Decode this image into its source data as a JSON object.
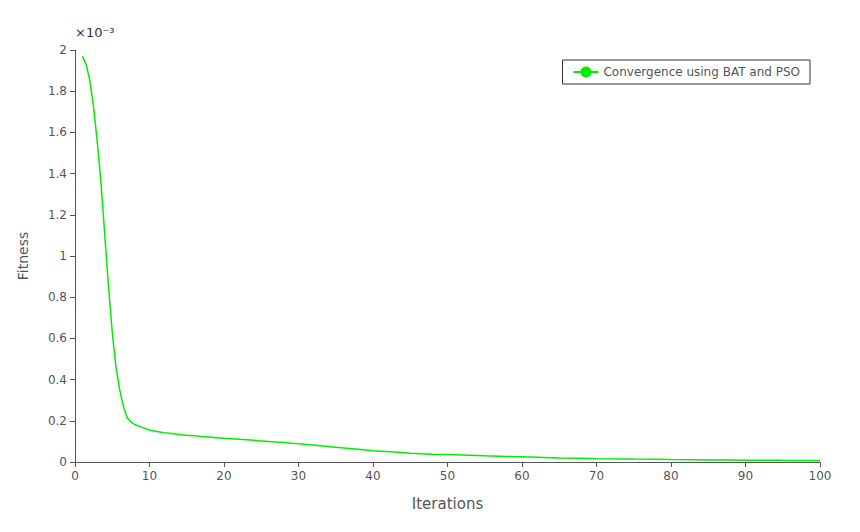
{
  "chart_data": {
    "type": "line",
    "xlabel": "Iterations",
    "ylabel": "Fitness",
    "annotations": [
      "×10⁻³"
    ],
    "x": [
      1,
      1.5,
      2,
      2.5,
      3,
      3.5,
      4,
      4.5,
      5,
      5.5,
      6,
      6.5,
      7,
      7.5,
      8,
      9,
      10,
      11,
      12,
      13,
      14,
      15,
      16,
      17,
      18,
      19,
      20,
      22,
      24,
      26,
      28,
      30,
      32,
      35,
      38,
      40,
      43,
      45,
      48,
      50,
      53,
      55,
      57,
      58,
      60,
      63,
      65,
      68,
      70,
      73,
      75,
      78,
      80,
      83,
      85,
      88,
      90,
      93,
      95,
      98,
      100
    ],
    "series": [
      {
        "name": "Convergence using BAT and PSO",
        "color": "#00ee00",
        "values": [
          0.00197,
          0.00193,
          0.00185,
          0.00172,
          0.00155,
          0.00135,
          0.0011,
          0.00085,
          0.00063,
          0.00046,
          0.00035,
          0.00027,
          0.000215,
          0.000195,
          0.000182,
          0.000168,
          0.000155,
          0.000148,
          0.000142,
          0.000138,
          0.000134,
          0.00013,
          0.000127,
          0.000124,
          0.000121,
          0.000118,
          0.000115,
          0.00011,
          0.000105,
          0.0001,
          9.5e-05,
          8.8e-05,
          8.2e-05,
          7.2e-05,
          6.2e-05,
          5.5e-05,
          4.8e-05,
          4.3e-05,
          3.8e-05,
          3.6e-05,
          3.3e-05,
          3e-05,
          2.8e-05,
          2.7e-05,
          2.5e-05,
          2.2e-05,
          2e-05,
          1.8e-05,
          1.6e-05,
          1.5e-05,
          1.4e-05,
          1.3e-05,
          1.2e-05,
          1.1e-05,
          1e-05,
          9.5e-06,
          9e-06,
          8.5e-06,
          8e-06,
          7.5e-06,
          7e-06
        ]
      }
    ],
    "xlim": [
      0,
      100
    ],
    "xticks": [
      0,
      10,
      20,
      30,
      40,
      50,
      60,
      70,
      80,
      90,
      100
    ],
    "ylim": [
      0,
      0.002
    ],
    "yticks": [
      0,
      {
        "value": 0.0002,
        "label": "0.2"
      },
      {
        "value": 0.0004,
        "label": "0.4"
      },
      {
        "value": 0.0006,
        "label": "0.6"
      },
      {
        "value": 0.0008,
        "label": "0.8"
      },
      {
        "value": 0.001,
        "label": "1"
      },
      {
        "value": 0.0012,
        "label": "1.2"
      },
      {
        "value": 0.0014,
        "label": "1.4"
      },
      {
        "value": 0.0016,
        "label": "1.6"
      },
      {
        "value": 0.0018,
        "label": "1.8"
      },
      {
        "value": 0.002,
        "label": "2"
      }
    ],
    "legend": "upper right",
    "grid": false
  }
}
